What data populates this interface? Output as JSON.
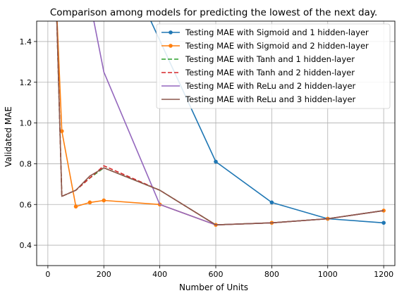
{
  "chart_data": {
    "type": "line",
    "title": "Comparison among models for predicting the lowest of the next day.",
    "xlabel": "Number of Units",
    "ylabel": "Validated MAE",
    "xlim": [
      -40,
      1240
    ],
    "ylim": [
      0.3,
      1.5
    ],
    "xticks": [
      0,
      200,
      400,
      600,
      800,
      1000,
      1200
    ],
    "yticks": [
      0.4,
      0.6,
      0.8,
      1.0,
      1.2,
      1.4
    ],
    "xtick_labels": [
      "0",
      "200",
      "400",
      "600",
      "800",
      "1000",
      "1200"
    ],
    "ytick_labels": [
      "0.4",
      "0.6",
      "0.8",
      "1.0",
      "1.2",
      "1.4"
    ],
    "grid": true,
    "legend_position": "top-right",
    "series": [
      {
        "name": "Testing MAE with Sigmoid and 1 hidden-layer",
        "color": "#1f77b4",
        "style": "solid",
        "marker": "circle",
        "x": [
          200,
          600,
          800,
          1000,
          1200
        ],
        "y": [
          2.0,
          0.81,
          0.61,
          0.53,
          0.51
        ]
      },
      {
        "name": "Testing MAE with Sigmoid and 2 hidden-layer",
        "color": "#ff7f0e",
        "style": "solid",
        "marker": "circle",
        "x": [
          30,
          50,
          100,
          150,
          200,
          400,
          600,
          800,
          1000,
          1200
        ],
        "y": [
          1.6,
          0.96,
          0.59,
          0.61,
          0.62,
          0.6,
          0.5,
          0.51,
          0.53,
          0.57
        ]
      },
      {
        "name": "Testing MAE with Tanh and 1 hidden-layer",
        "color": "#2ca02c",
        "style": "dashed",
        "marker": "none",
        "x": [
          30,
          50,
          100,
          150,
          200,
          400,
          600,
          800,
          1000,
          1200
        ],
        "y": [
          1.6,
          0.64,
          0.67,
          0.73,
          0.78,
          0.67,
          0.5,
          0.51,
          0.53,
          0.57
        ]
      },
      {
        "name": "Testing MAE with Tanh and 2 hidden-layer",
        "color": "#d62728",
        "style": "dashed",
        "marker": "none",
        "x": [
          30,
          50,
          100,
          150,
          200,
          400,
          600,
          800,
          1000,
          1200
        ],
        "y": [
          1.6,
          0.64,
          0.67,
          0.73,
          0.79,
          0.67,
          0.5,
          0.51,
          0.53,
          0.57
        ]
      },
      {
        "name": "Testing MAE with ReLu and 2 hidden-layer",
        "color": "#9467bd",
        "style": "solid",
        "marker": "none",
        "x": [
          150,
          200,
          400,
          600,
          800,
          1000,
          1200
        ],
        "y": [
          1.6,
          1.25,
          0.6,
          0.5,
          0.51,
          0.53,
          0.57
        ]
      },
      {
        "name": "Testing MAE with ReLu and 3 hidden-layer",
        "color": "#8c564b",
        "style": "solid",
        "marker": "none",
        "x": [
          30,
          50,
          100,
          150,
          200,
          400,
          600,
          800,
          1000,
          1200
        ],
        "y": [
          1.6,
          0.64,
          0.67,
          0.74,
          0.78,
          0.67,
          0.5,
          0.51,
          0.53,
          0.57
        ]
      }
    ]
  }
}
